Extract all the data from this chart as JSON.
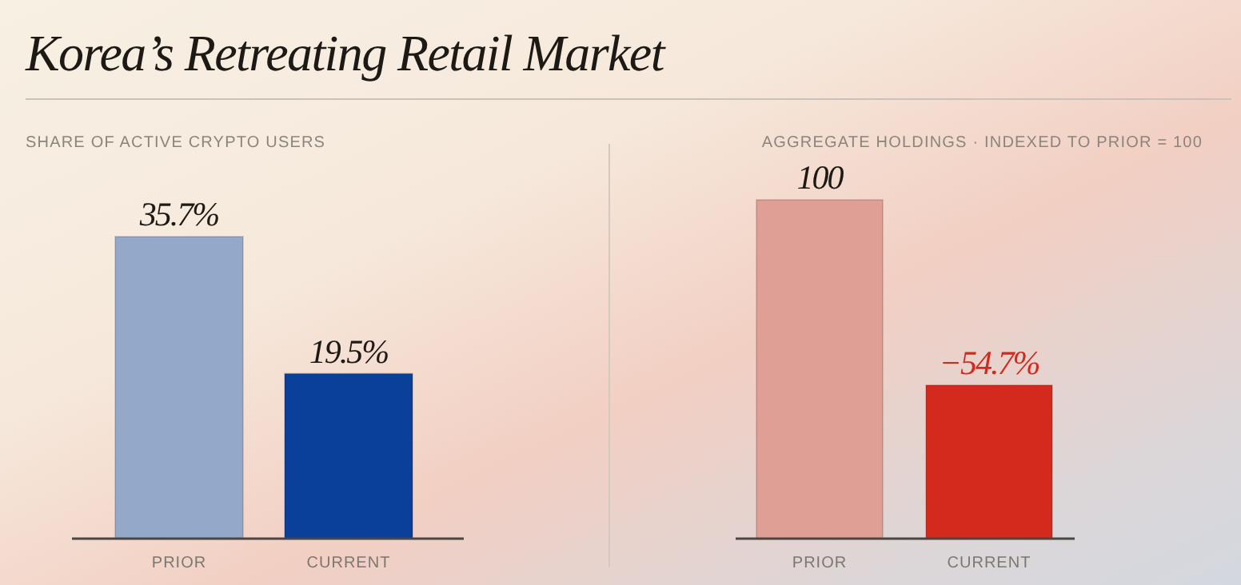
{
  "chart_data": [
    {
      "type": "bar",
      "title": "Korea’s Retreating Retail Market",
      "subtitle": "SHARE OF ACTIVE CRYPTO USERS",
      "categories": [
        "PRIOR",
        "CURRENT"
      ],
      "values": [
        35.7,
        19.5
      ],
      "colors": [
        "#94a9c9",
        "#0a3f9a"
      ],
      "value_labels": [
        "35.7%",
        "19.5%"
      ]
    },
    {
      "type": "bar",
      "subtitle": "AGGREGATE HOLDINGS · INDEXED TO PRIOR = 100",
      "categories": [
        "PRIOR",
        "CURRENT"
      ],
      "values": [
        100,
        45.3
      ],
      "colors": [
        "#e09f94",
        "#d42a1e"
      ],
      "value_labels": [
        "100",
        null
      ],
      "annotations": [
        {
          "text": "−54.7%",
          "x": "CURRENT",
          "y": 45.3
        }
      ]
    }
  ]
}
